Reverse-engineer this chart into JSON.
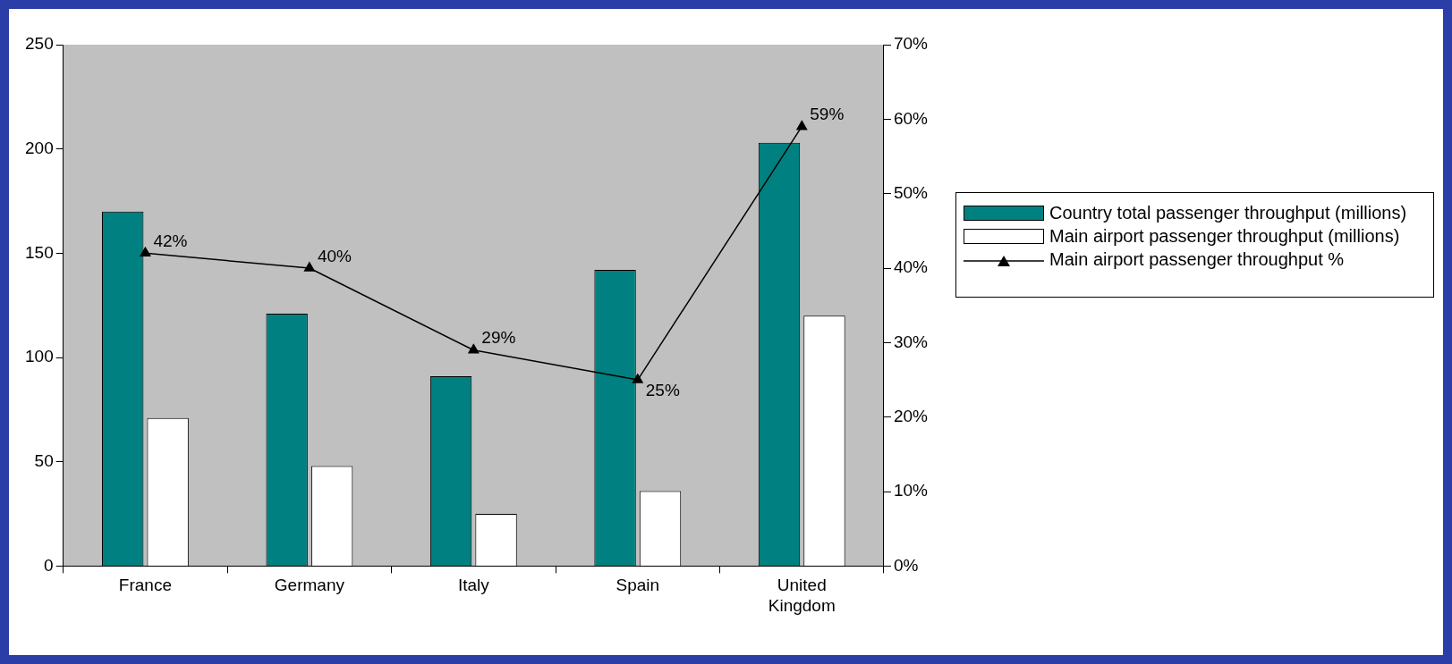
{
  "chart_data": {
    "type": "bar",
    "categories": [
      "France",
      "Germany",
      "Italy",
      "Spain",
      "United Kingdom"
    ],
    "series": [
      {
        "name": "Country total passenger throughput (millions)",
        "color": "#008080",
        "values": [
          170,
          121,
          91,
          142,
          203
        ]
      },
      {
        "name": "Main airport passenger throughput (millions)",
        "color": "#ffffff",
        "values": [
          71,
          48,
          25,
          36,
          120
        ]
      },
      {
        "name": "Main airport passenger throughput %",
        "type": "line",
        "axis": "y2",
        "color": "#000000",
        "values": [
          42,
          40,
          29,
          25,
          59
        ],
        "value_labels": [
          "42%",
          "40%",
          "29%",
          "25%",
          "59%"
        ]
      }
    ],
    "ylim": [
      0,
      250
    ],
    "yticks": [
      0,
      50,
      100,
      150,
      200,
      250
    ],
    "y2lim": [
      0,
      70
    ],
    "y2ticks": [
      {
        "value": 0,
        "label": "0%"
      },
      {
        "value": 10,
        "label": "10%"
      },
      {
        "value": 20,
        "label": "20%"
      },
      {
        "value": 30,
        "label": "30%"
      },
      {
        "value": 40,
        "label": "40%"
      },
      {
        "value": 50,
        "label": "50%"
      },
      {
        "value": 60,
        "label": "60%"
      },
      {
        "value": 70,
        "label": "70%"
      }
    ],
    "grid": false,
    "legend": "right",
    "marker": "triangle",
    "line_style": "solid"
  }
}
